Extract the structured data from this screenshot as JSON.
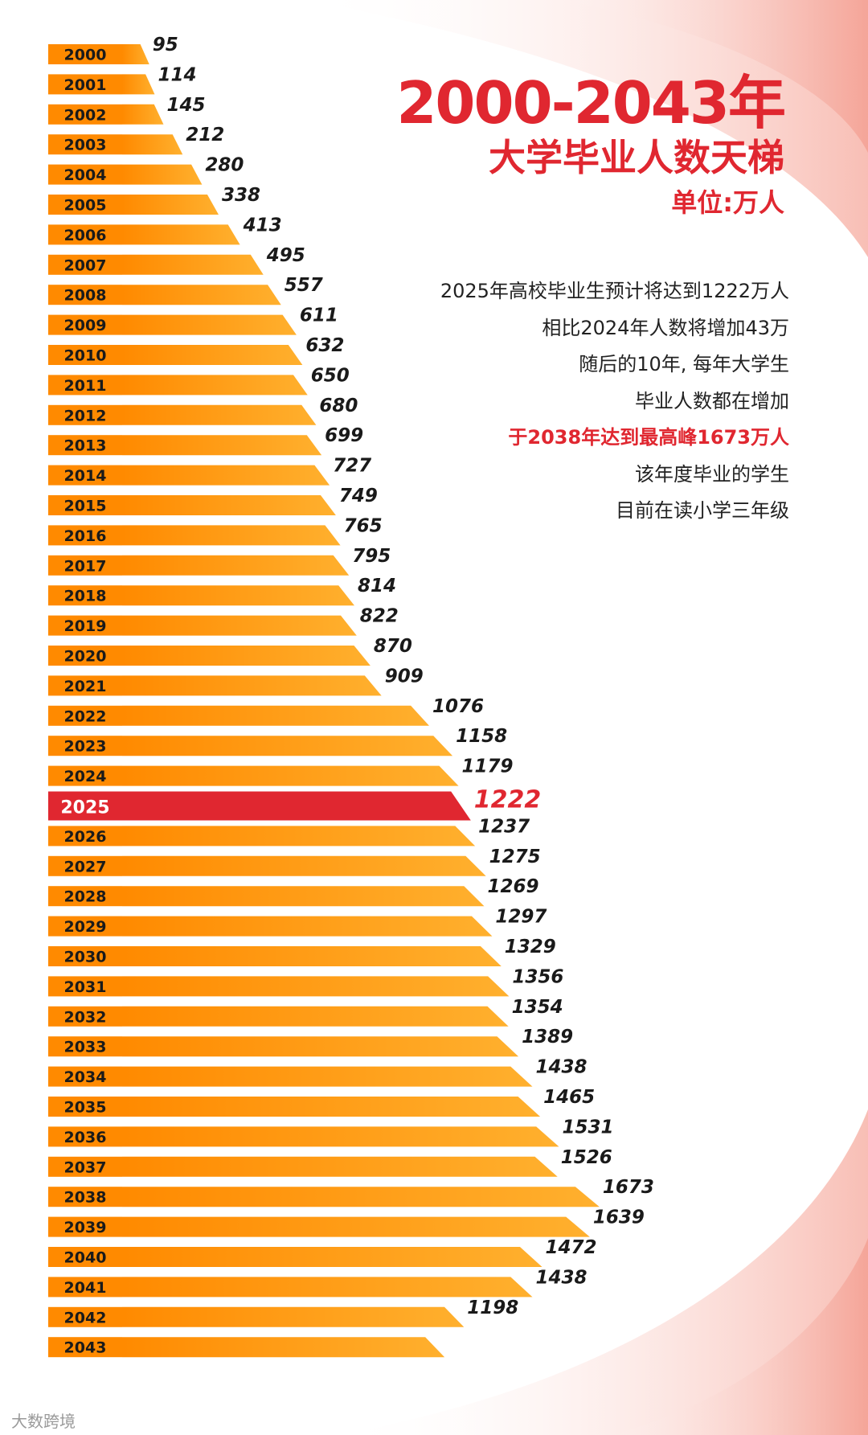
{
  "title": {
    "main": "2000-2043年",
    "sub": "大学毕业人数天梯",
    "unit": "单位:万人"
  },
  "description": {
    "lines": [
      "2025年高校毕业生预计将达到1222万人",
      "相比2024年人数将增加43万",
      "随后的10年, 每年大学生",
      "毕业人数都在增加",
      "于2038年达到最高峰1673万人",
      "该年度毕业的学生",
      "目前在读小学三年级"
    ],
    "highlight_line": 4
  },
  "watermark": "大数跨境",
  "colors": {
    "bar": "#ff8a00",
    "bar_light": "#ffb02e",
    "highlight": "#e02730",
    "label": "#1a1a1a"
  },
  "chart_data": {
    "type": "bar",
    "orientation": "horizontal",
    "title": "2000-2043年 大学毕业人数天梯",
    "xlabel": "",
    "ylabel": "",
    "unit": "万人",
    "highlight_category": "2025",
    "categories": [
      "2000",
      "2001",
      "2002",
      "2003",
      "2004",
      "2005",
      "2006",
      "2007",
      "2008",
      "2009",
      "2010",
      "2011",
      "2012",
      "2013",
      "2014",
      "2015",
      "2016",
      "2017",
      "2018",
      "2019",
      "2020",
      "2021",
      "2022",
      "2023",
      "2024",
      "2025",
      "2026",
      "2027",
      "2028",
      "2029",
      "2030",
      "2031",
      "2032",
      "2033",
      "2034",
      "2035",
      "2036",
      "2037",
      "2038",
      "2039",
      "2040",
      "2041",
      "2042",
      "2043"
    ],
    "values": [
      95,
      114,
      145,
      212,
      280,
      338,
      413,
      495,
      557,
      611,
      632,
      650,
      680,
      699,
      727,
      749,
      765,
      795,
      814,
      822,
      870,
      909,
      1076,
      1158,
      1179,
      1222,
      1237,
      1275,
      1269,
      1297,
      1329,
      1356,
      1354,
      1389,
      1438,
      1465,
      1531,
      1526,
      1673,
      1639,
      1472,
      1438,
      1198,
      null
    ],
    "data_labels": [
      "95",
      "114",
      "145",
      "212",
      "280",
      "338",
      "413",
      "495",
      "557",
      "611",
      "632",
      "650",
      "680",
      "699",
      "727",
      "749",
      "765",
      "795",
      "814",
      "822",
      "870",
      "909",
      "1076",
      "1158",
      "1179",
      "1222",
      "1237",
      "1275",
      "1269",
      "1297",
      "1329",
      "1356",
      "1354",
      "1389",
      "1438",
      "1465",
      "1531",
      "1526",
      "1673",
      "1639",
      "1472",
      "1438",
      "1198",
      ""
    ]
  }
}
